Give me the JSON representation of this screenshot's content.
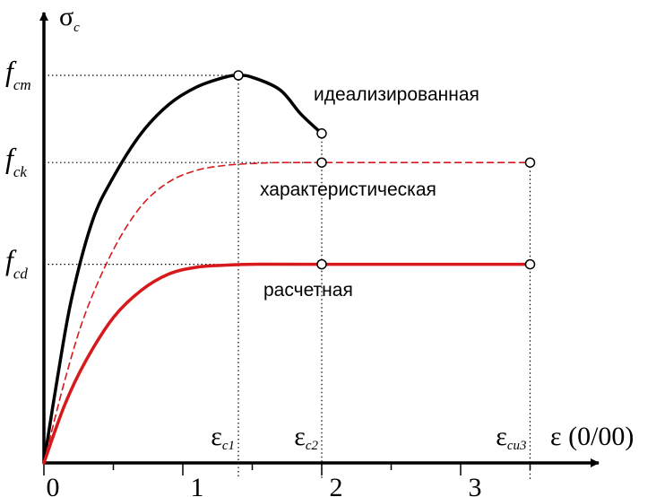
{
  "chart_data": {
    "type": "line",
    "xlabel": "ε (0/00)",
    "ylabel": "σ",
    "ylabel_sub": "c",
    "xlim": [
      -0.1,
      4.1
    ],
    "ylim": [
      0,
      4.75
    ],
    "x_ticks": [
      {
        "value": 0,
        "label": "0"
      },
      {
        "value": 1,
        "label": "1"
      },
      {
        "value": 2,
        "label": "2"
      },
      {
        "value": 3,
        "label": "3"
      }
    ],
    "minor_x_ticks": [
      0.5,
      1.5,
      2.5,
      3.5
    ],
    "y_levels": [
      {
        "name": "f",
        "sub": "cm",
        "value": 4.0
      },
      {
        "name": "f",
        "sub": "ck",
        "value": 3.1
      },
      {
        "name": "f",
        "sub": "cd",
        "value": 2.05
      }
    ],
    "strain_marks": [
      {
        "name": "ε",
        "sub": "c1",
        "value": 1.4
      },
      {
        "name": "ε",
        "sub": "c2",
        "value": 2.0
      },
      {
        "name": "ε",
        "sub": "cu3",
        "value": 3.5
      }
    ],
    "series": [
      {
        "name": "идеализированная",
        "color": "#000000",
        "style": "solid",
        "points": [
          [
            0,
            0
          ],
          [
            0.1,
            0.9
          ],
          [
            0.2,
            1.7
          ],
          [
            0.35,
            2.5
          ],
          [
            0.5,
            2.95
          ],
          [
            0.7,
            3.4
          ],
          [
            0.9,
            3.7
          ],
          [
            1.1,
            3.88
          ],
          [
            1.3,
            3.98
          ],
          [
            1.4,
            4.0
          ],
          [
            1.5,
            3.98
          ],
          [
            1.7,
            3.85
          ],
          [
            1.85,
            3.6
          ],
          [
            2.0,
            3.4
          ]
        ],
        "markers": [
          [
            1.4,
            4.0
          ],
          [
            2.0,
            3.4
          ]
        ]
      },
      {
        "name": "характеристическая",
        "color": "#d7191c",
        "style": "dashed",
        "points": [
          [
            0,
            0
          ],
          [
            0.15,
            0.85
          ],
          [
            0.3,
            1.55
          ],
          [
            0.5,
            2.2
          ],
          [
            0.7,
            2.65
          ],
          [
            0.9,
            2.9
          ],
          [
            1.1,
            3.02
          ],
          [
            1.3,
            3.07
          ],
          [
            1.5,
            3.09
          ],
          [
            1.7,
            3.1
          ],
          [
            2.0,
            3.1
          ],
          [
            3.5,
            3.1
          ]
        ],
        "markers": [
          [
            2.0,
            3.1
          ],
          [
            3.5,
            3.1
          ]
        ]
      },
      {
        "name": "расчетная",
        "color": "#d7191c",
        "style": "solid",
        "points": [
          [
            0,
            0
          ],
          [
            0.15,
            0.6
          ],
          [
            0.3,
            1.05
          ],
          [
            0.5,
            1.5
          ],
          [
            0.7,
            1.78
          ],
          [
            0.9,
            1.95
          ],
          [
            1.1,
            2.02
          ],
          [
            1.3,
            2.04
          ],
          [
            1.5,
            2.05
          ],
          [
            2.0,
            2.05
          ],
          [
            3.5,
            2.05
          ]
        ],
        "markers": [
          [
            2.0,
            2.05
          ],
          [
            3.5,
            2.05
          ]
        ]
      }
    ],
    "grid": false,
    "legend": "inline"
  }
}
